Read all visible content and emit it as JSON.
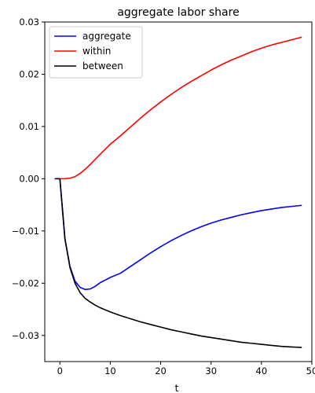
{
  "chart_data": {
    "type": "line",
    "title": "aggregate labor share",
    "xlabel": "t",
    "ylabel": "",
    "xlim": [
      -3,
      50
    ],
    "ylim": [
      -0.035,
      0.03
    ],
    "xticks": [
      0,
      10,
      20,
      30,
      40,
      50
    ],
    "xtick_labels": [
      "0",
      "10",
      "20",
      "30",
      "40",
      "50"
    ],
    "yticks": [
      -0.03,
      -0.02,
      -0.01,
      0.0,
      0.01,
      0.02,
      0.03
    ],
    "ytick_labels": [
      "−0.03",
      "−0.02",
      "−0.01",
      "0.00",
      "0.01",
      "0.02",
      "0.03"
    ],
    "grid": false,
    "legend_position": "top-left",
    "x": [
      -1,
      0,
      1,
      2,
      3,
      4,
      5,
      6,
      7,
      8,
      10,
      12,
      14,
      16,
      18,
      20,
      22,
      24,
      26,
      28,
      30,
      32,
      34,
      36,
      38,
      40,
      42,
      44,
      46,
      48
    ],
    "series": [
      {
        "name": "aggregate",
        "color": "#0000ff",
        "values": [
          0.0,
          0.0,
          -0.0115,
          -0.0168,
          -0.0196,
          -0.0208,
          -0.0212,
          -0.0211,
          -0.0206,
          -0.0199,
          -0.0189,
          -0.0181,
          -0.0168,
          -0.0155,
          -0.0142,
          -0.013,
          -0.0119,
          -0.0109,
          -0.01,
          -0.0092,
          -0.0085,
          -0.0079,
          -0.0074,
          -0.0069,
          -0.0065,
          -0.0061,
          -0.0058,
          -0.0055,
          -0.0053,
          -0.0051
        ]
      },
      {
        "name": "within",
        "color": "#ff0000",
        "values": [
          0.0,
          0.0,
          0.0,
          0.0001,
          0.0004,
          0.001,
          0.0018,
          0.0027,
          0.0037,
          0.0047,
          0.0066,
          0.0082,
          0.0099,
          0.0116,
          0.0132,
          0.0147,
          0.0161,
          0.0174,
          0.0186,
          0.0197,
          0.0208,
          0.0218,
          0.0227,
          0.0235,
          0.0243,
          0.025,
          0.0256,
          0.0261,
          0.0266,
          0.0271
        ]
      },
      {
        "name": "between",
        "color": "#000000",
        "values": [
          0.0,
          0.0,
          -0.0115,
          -0.017,
          -0.02,
          -0.0218,
          -0.0229,
          -0.0236,
          -0.0242,
          -0.0247,
          -0.0255,
          -0.0262,
          -0.0268,
          -0.0274,
          -0.0279,
          -0.0284,
          -0.0289,
          -0.0293,
          -0.0297,
          -0.0301,
          -0.0304,
          -0.0307,
          -0.031,
          -0.0313,
          -0.0315,
          -0.0317,
          -0.0319,
          -0.0321,
          -0.0322,
          -0.0323
        ]
      }
    ]
  }
}
